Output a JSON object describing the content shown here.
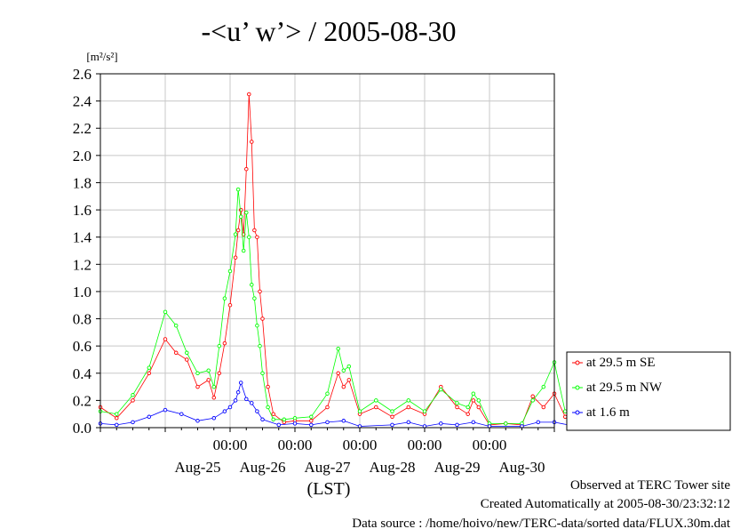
{
  "chart_data": {
    "type": "line",
    "title": "-<u’ w’> / 2005-08-30",
    "ylabel_unit": "[m²/s²]",
    "xlabel": "(LST)",
    "ylim": [
      0,
      2.6
    ],
    "y_ticks": [
      "0.0",
      "0.2",
      "0.4",
      "0.6",
      "0.8",
      "1.0",
      "1.2",
      "1.4",
      "1.6",
      "1.8",
      "2.0",
      "2.2",
      "2.4",
      "2.6"
    ],
    "x_range_days": [
      "2005-08-24",
      "2005-08-31"
    ],
    "x_time_labels": [
      "00:00",
      "00:00",
      "00:00",
      "00:00",
      "00:00"
    ],
    "x_day_labels": [
      "Aug-25",
      "Aug-26",
      "Aug-27",
      "Aug-28",
      "Aug-29",
      "Aug-30"
    ],
    "grid": true,
    "legend_position": "right",
    "series": [
      {
        "name": "at 29.5 m SE",
        "color": "#ff0000",
        "points": [
          [
            "2005-08-24 00:00",
            0.15
          ],
          [
            "2005-08-24 06:00",
            0.07
          ],
          [
            "2005-08-24 12:00",
            0.2
          ],
          [
            "2005-08-24 18:00",
            0.4
          ],
          [
            "2005-08-25 00:00",
            0.65
          ],
          [
            "2005-08-25 04:00",
            0.55
          ],
          [
            "2005-08-25 08:00",
            0.5
          ],
          [
            "2005-08-25 12:00",
            0.3
          ],
          [
            "2005-08-25 16:00",
            0.35
          ],
          [
            "2005-08-25 18:00",
            0.22
          ],
          [
            "2005-08-25 20:00",
            0.4
          ],
          [
            "2005-08-25 22:00",
            0.62
          ],
          [
            "2005-08-26 00:00",
            0.9
          ],
          [
            "2005-08-26 02:00",
            1.25
          ],
          [
            "2005-08-26 03:00",
            1.45
          ],
          [
            "2005-08-26 04:00",
            1.6
          ],
          [
            "2005-08-26 05:00",
            1.42
          ],
          [
            "2005-08-26 06:00",
            1.9
          ],
          [
            "2005-08-26 07:00",
            2.45
          ],
          [
            "2005-08-26 08:00",
            2.1
          ],
          [
            "2005-08-26 09:00",
            1.45
          ],
          [
            "2005-08-26 10:00",
            1.4
          ],
          [
            "2005-08-26 11:00",
            1.0
          ],
          [
            "2005-08-26 12:00",
            0.8
          ],
          [
            "2005-08-26 14:00",
            0.3
          ],
          [
            "2005-08-26 16:00",
            0.1
          ],
          [
            "2005-08-26 20:00",
            0.04
          ],
          [
            "2005-08-27 00:00",
            0.05
          ],
          [
            "2005-08-27 06:00",
            0.05
          ],
          [
            "2005-08-27 12:00",
            0.15
          ],
          [
            "2005-08-27 16:00",
            0.4
          ],
          [
            "2005-08-27 18:00",
            0.3
          ],
          [
            "2005-08-27 20:00",
            0.35
          ],
          [
            "2005-08-28 00:00",
            0.1
          ],
          [
            "2005-08-28 06:00",
            0.15
          ],
          [
            "2005-08-28 12:00",
            0.08
          ],
          [
            "2005-08-28 18:00",
            0.15
          ],
          [
            "2005-08-29 00:00",
            0.1
          ],
          [
            "2005-08-29 06:00",
            0.3
          ],
          [
            "2005-08-29 12:00",
            0.15
          ],
          [
            "2005-08-29 16:00",
            0.1
          ],
          [
            "2005-08-29 18:00",
            0.2
          ],
          [
            "2005-08-29 20:00",
            0.15
          ],
          [
            "2005-08-30 00:00",
            0.02
          ],
          [
            "2005-08-30 06:00",
            0.03
          ],
          [
            "2005-08-30 12:00",
            0.02
          ],
          [
            "2005-08-30 16:00",
            0.23
          ],
          [
            "2005-08-30 20:00",
            0.15
          ],
          [
            "2005-08-31 00:00",
            0.25
          ],
          [
            "2005-08-31 04:00",
            0.08
          ],
          [
            "2005-08-31 08:00",
            0.02
          ]
        ]
      },
      {
        "name": "at 29.5 m NW",
        "color": "#00ff00",
        "points": [
          [
            "2005-08-24 00:00",
            0.12
          ],
          [
            "2005-08-24 06:00",
            0.1
          ],
          [
            "2005-08-24 12:00",
            0.24
          ],
          [
            "2005-08-24 18:00",
            0.44
          ],
          [
            "2005-08-25 00:00",
            0.85
          ],
          [
            "2005-08-25 04:00",
            0.75
          ],
          [
            "2005-08-25 08:00",
            0.55
          ],
          [
            "2005-08-25 12:00",
            0.4
          ],
          [
            "2005-08-25 16:00",
            0.42
          ],
          [
            "2005-08-25 18:00",
            0.3
          ],
          [
            "2005-08-25 20:00",
            0.6
          ],
          [
            "2005-08-25 22:00",
            0.95
          ],
          [
            "2005-08-26 00:00",
            1.15
          ],
          [
            "2005-08-26 02:00",
            1.42
          ],
          [
            "2005-08-26 03:00",
            1.75
          ],
          [
            "2005-08-26 04:00",
            1.55
          ],
          [
            "2005-08-26 05:00",
            1.3
          ],
          [
            "2005-08-26 06:00",
            1.58
          ],
          [
            "2005-08-26 07:00",
            1.4
          ],
          [
            "2005-08-26 08:00",
            1.05
          ],
          [
            "2005-08-26 09:00",
            0.95
          ],
          [
            "2005-08-26 10:00",
            0.75
          ],
          [
            "2005-08-26 11:00",
            0.6
          ],
          [
            "2005-08-26 12:00",
            0.4
          ],
          [
            "2005-08-26 14:00",
            0.15
          ],
          [
            "2005-08-26 16:00",
            0.06
          ],
          [
            "2005-08-26 20:00",
            0.06
          ],
          [
            "2005-08-27 00:00",
            0.07
          ],
          [
            "2005-08-27 06:00",
            0.08
          ],
          [
            "2005-08-27 12:00",
            0.25
          ],
          [
            "2005-08-27 16:00",
            0.58
          ],
          [
            "2005-08-27 18:00",
            0.42
          ],
          [
            "2005-08-27 20:00",
            0.45
          ],
          [
            "2005-08-28 00:00",
            0.12
          ],
          [
            "2005-08-28 06:00",
            0.2
          ],
          [
            "2005-08-28 12:00",
            0.12
          ],
          [
            "2005-08-28 18:00",
            0.2
          ],
          [
            "2005-08-29 00:00",
            0.12
          ],
          [
            "2005-08-29 06:00",
            0.28
          ],
          [
            "2005-08-29 12:00",
            0.18
          ],
          [
            "2005-08-29 16:00",
            0.15
          ],
          [
            "2005-08-29 18:00",
            0.25
          ],
          [
            "2005-08-29 20:00",
            0.2
          ],
          [
            "2005-08-30 00:00",
            0.03
          ],
          [
            "2005-08-30 06:00",
            0.03
          ],
          [
            "2005-08-30 12:00",
            0.03
          ],
          [
            "2005-08-30 16:00",
            0.2
          ],
          [
            "2005-08-30 20:00",
            0.3
          ],
          [
            "2005-08-31 00:00",
            0.48
          ],
          [
            "2005-08-31 04:00",
            0.12
          ],
          [
            "2005-08-31 08:00",
            0.03
          ]
        ]
      },
      {
        "name": "at 1.6 m",
        "color": "#0000ff",
        "points": [
          [
            "2005-08-24 00:00",
            0.03
          ],
          [
            "2005-08-24 06:00",
            0.02
          ],
          [
            "2005-08-24 12:00",
            0.04
          ],
          [
            "2005-08-24 18:00",
            0.08
          ],
          [
            "2005-08-25 00:00",
            0.13
          ],
          [
            "2005-08-25 06:00",
            0.1
          ],
          [
            "2005-08-25 12:00",
            0.05
          ],
          [
            "2005-08-25 18:00",
            0.07
          ],
          [
            "2005-08-25 22:00",
            0.12
          ],
          [
            "2005-08-26 00:00",
            0.15
          ],
          [
            "2005-08-26 02:00",
            0.2
          ],
          [
            "2005-08-26 03:00",
            0.26
          ],
          [
            "2005-08-26 04:00",
            0.33
          ],
          [
            "2005-08-26 06:00",
            0.21
          ],
          [
            "2005-08-26 08:00",
            0.18
          ],
          [
            "2005-08-26 10:00",
            0.12
          ],
          [
            "2005-08-26 12:00",
            0.06
          ],
          [
            "2005-08-26 18:00",
            0.02
          ],
          [
            "2005-08-27 00:00",
            0.03
          ],
          [
            "2005-08-27 06:00",
            0.02
          ],
          [
            "2005-08-27 12:00",
            0.04
          ],
          [
            "2005-08-27 18:00",
            0.05
          ],
          [
            "2005-08-28 00:00",
            0.01
          ],
          [
            "2005-08-28 12:00",
            0.02
          ],
          [
            "2005-08-28 18:00",
            0.04
          ],
          [
            "2005-08-29 00:00",
            0.01
          ],
          [
            "2005-08-29 06:00",
            0.03
          ],
          [
            "2005-08-29 12:00",
            0.02
          ],
          [
            "2005-08-29 18:00",
            0.04
          ],
          [
            "2005-08-30 00:00",
            0.01
          ],
          [
            "2005-08-30 12:00",
            0.01
          ],
          [
            "2005-08-30 18:00",
            0.04
          ],
          [
            "2005-08-31 00:00",
            0.04
          ],
          [
            "2005-08-31 08:00",
            0.01
          ]
        ]
      }
    ]
  },
  "footer": {
    "observed": "Observed at TERC Tower site",
    "created": "Created Automatically at 2005-08-30/23:32:12",
    "source": "Data source : /home/hoivo/new/TERC-data/sorted  data/FLUX.30m.dat"
  }
}
